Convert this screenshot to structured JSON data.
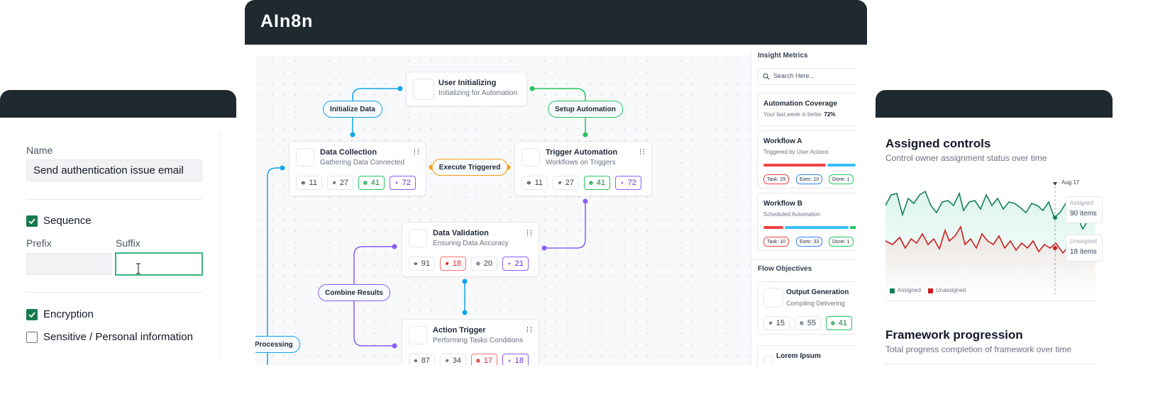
{
  "left_form": {
    "name_label": "Name",
    "name_value": "Send authentication issue email",
    "sequence": "Sequence",
    "prefix": "Prefix",
    "suffix": "Suffix",
    "encryption": "Encryption",
    "sensitive": "Sensitive / Personal information"
  },
  "app": {
    "title": "AIn8n"
  },
  "flow": {
    "nodes": [
      {
        "title": "User Initializing",
        "subtitle": "Initializing for Automation"
      },
      {
        "title": "Data Collection",
        "subtitle": "Gathering Data Connected",
        "stats": [
          11,
          27,
          41,
          72
        ]
      },
      {
        "title": "Trigger Automation",
        "subtitle": "Workflows on Triggers",
        "stats": [
          11,
          27,
          41,
          72
        ]
      },
      {
        "title": "Data Validation",
        "subtitle": "Ensuring Data Accuracy",
        "stats": [
          91,
          18,
          20,
          21
        ]
      },
      {
        "title": "Action Trigger",
        "subtitle": "Performing Tasks Conditions",
        "stats": [
          87,
          34,
          17,
          18
        ]
      }
    ],
    "edge_labels": [
      "Initialize Data",
      "Setup Automation",
      "Execute Triggered",
      "Combine Results",
      "ct Processing"
    ]
  },
  "sidebar": {
    "insight_title": "Insight Metrics",
    "search_placeholder": "Search Here...",
    "coverage": {
      "title": "Automation Coverage",
      "text": "Your last week is better",
      "value": "72%"
    },
    "workflows": [
      {
        "title": "Workflow A",
        "subtitle": "Triggered by User Actions",
        "tags": [
          "Task: 29",
          "Exec: 10",
          "Done: 1"
        ]
      },
      {
        "title": "Workflow B",
        "subtitle": "Scheduled Automation",
        "tags": [
          "Task: 10",
          "Exec: 33",
          "Done: 1"
        ]
      }
    ],
    "objectives_title": "Flow Objectives",
    "objectives": [
      {
        "title": "Output Generation",
        "subtitle": "Compiling Delivering",
        "stats": [
          15,
          55,
          41
        ]
      },
      {
        "title": "Lorem Ipsum"
      }
    ]
  },
  "right_card": {
    "title": "Assigned controls",
    "subtitle": "Control owner assignment status over time",
    "marker_date": "Aug 17",
    "tooltip": [
      {
        "label": "Assigned",
        "value": "90 items"
      },
      {
        "label": "Unssigned",
        "value": "18 items"
      }
    ],
    "legend": [
      "Assigned",
      "Unassigned"
    ],
    "section2_title": "Framework progression",
    "section2_subtitle": "Total progress completion of framework over time"
  }
}
